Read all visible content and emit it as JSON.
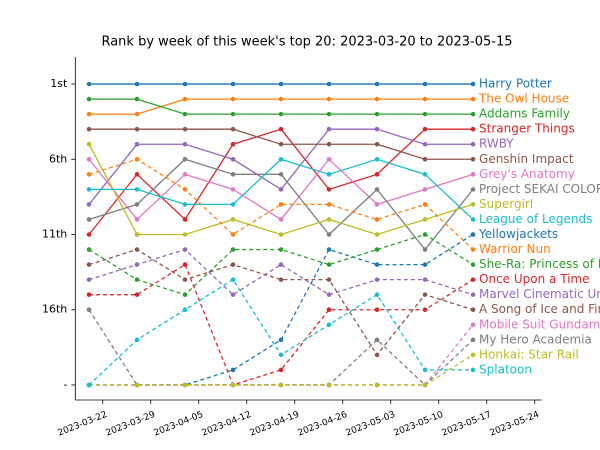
{
  "chart_data": {
    "type": "line",
    "title": "Rank by week of this week's top 20: 2023-03-20 to 2023-05-15",
    "x": [
      "2023-03-20",
      "2023-03-27",
      "2023-04-03",
      "2023-04-10",
      "2023-04-17",
      "2023-04-24",
      "2023-05-01",
      "2023-05-08",
      "2023-05-15"
    ],
    "xlim": [
      "2023-03-18",
      "2023-05-25"
    ],
    "xticks": [
      "2023-03-22",
      "2023-03-29",
      "2023-04-05",
      "2023-04-12",
      "2023-04-19",
      "2023-04-26",
      "2023-05-03",
      "2023-05-10",
      "2023-05-17",
      "2023-05-24"
    ],
    "ylim": [
      22,
      0
    ],
    "yticks": [
      {
        "value": 1,
        "label": "1st"
      },
      {
        "value": 6,
        "label": "6th"
      },
      {
        "value": 11,
        "label": "11th"
      },
      {
        "value": 16,
        "label": "16th"
      },
      {
        "value": 21,
        "label": "-"
      }
    ],
    "series": [
      {
        "name": "Harry Potter",
        "color": "#1f77b4",
        "linestyle": "solid",
        "values": [
          1,
          1,
          1,
          1,
          1,
          1,
          1,
          1,
          1
        ]
      },
      {
        "name": "The Owl House",
        "color": "#ff7f0e",
        "linestyle": "solid",
        "values": [
          3,
          3,
          2,
          2,
          2,
          2,
          2,
          2,
          2
        ]
      },
      {
        "name": "Addams Family",
        "color": "#2ca02c",
        "linestyle": "solid",
        "values": [
          2,
          2,
          3,
          3,
          3,
          3,
          3,
          3,
          3
        ]
      },
      {
        "name": "Stranger Things",
        "color": "#d62728",
        "linestyle": "solid",
        "values": [
          11,
          7,
          10,
          5,
          4,
          8,
          7,
          4,
          4
        ]
      },
      {
        "name": "RWBY",
        "color": "#9467bd",
        "linestyle": "solid",
        "values": [
          9,
          5,
          5,
          6,
          8,
          4,
          4,
          5,
          5
        ]
      },
      {
        "name": "Genshin Impact",
        "color": "#8c564b",
        "linestyle": "solid",
        "values": [
          4,
          4,
          4,
          4,
          5,
          5,
          5,
          6,
          6
        ]
      },
      {
        "name": "Grey's Anatomy",
        "color": "#e377c2",
        "linestyle": "solid",
        "values": [
          6,
          10,
          7,
          8,
          10,
          6,
          9,
          8,
          7
        ]
      },
      {
        "name": "Project SEKAI COLORFUL STAGE",
        "color": "#7f7f7f",
        "linestyle": "solid",
        "values": [
          10,
          9,
          6,
          7,
          7,
          11,
          8,
          12,
          8
        ]
      },
      {
        "name": "Supergirl",
        "color": "#bcbd22",
        "linestyle": "solid",
        "values": [
          5,
          11,
          11,
          10,
          11,
          10,
          11,
          10,
          9
        ]
      },
      {
        "name": "League of Legends",
        "color": "#17becf",
        "linestyle": "solid",
        "values": [
          8,
          8,
          9,
          9,
          6,
          7,
          6,
          7,
          10
        ]
      },
      {
        "name": "Yellowjackets",
        "color": "#1f77b4",
        "linestyle": "dashed",
        "values": [
          21,
          21,
          21,
          20,
          18,
          12,
          13,
          13,
          11
        ]
      },
      {
        "name": "Warrior Nun",
        "color": "#ff7f0e",
        "linestyle": "dashed",
        "values": [
          7,
          6,
          8,
          11,
          9,
          9,
          10,
          9,
          12
        ]
      },
      {
        "name": "She-Ra: Princess of Power",
        "color": "#2ca02c",
        "linestyle": "dashed",
        "values": [
          12,
          14,
          15,
          12,
          12,
          13,
          12,
          11,
          13
        ]
      },
      {
        "name": "Once Upon a Time",
        "color": "#d62728",
        "linestyle": "dashed",
        "values": [
          15,
          15,
          13,
          21,
          20,
          16,
          16,
          16,
          14
        ]
      },
      {
        "name": "Marvel Cinematic Universe",
        "color": "#9467bd",
        "linestyle": "dashed",
        "values": [
          14,
          13,
          12,
          15,
          13,
          15,
          14,
          14,
          15
        ]
      },
      {
        "name": "A Song of Ice and Fire",
        "color": "#8c564b",
        "linestyle": "dashed",
        "values": [
          13,
          12,
          14,
          13,
          14,
          14,
          19,
          15,
          16
        ]
      },
      {
        "name": "Mobile Suit Gundam",
        "color": "#e377c2",
        "linestyle": "dashed",
        "values": [
          21,
          21,
          21,
          21,
          21,
          21,
          21,
          21,
          17
        ]
      },
      {
        "name": "My Hero Academia",
        "color": "#7f7f7f",
        "linestyle": "dashed",
        "values": [
          16,
          21,
          21,
          21,
          21,
          21,
          18,
          21,
          18
        ]
      },
      {
        "name": "Honkai: Star Rail",
        "color": "#bcbd22",
        "linestyle": "dashed",
        "values": [
          21,
          21,
          21,
          21,
          21,
          21,
          21,
          21,
          19
        ]
      },
      {
        "name": "Splatoon",
        "color": "#17becf",
        "linestyle": "dashed",
        "values": [
          21,
          18,
          16,
          14,
          19,
          17,
          15,
          20,
          20
        ]
      }
    ]
  }
}
